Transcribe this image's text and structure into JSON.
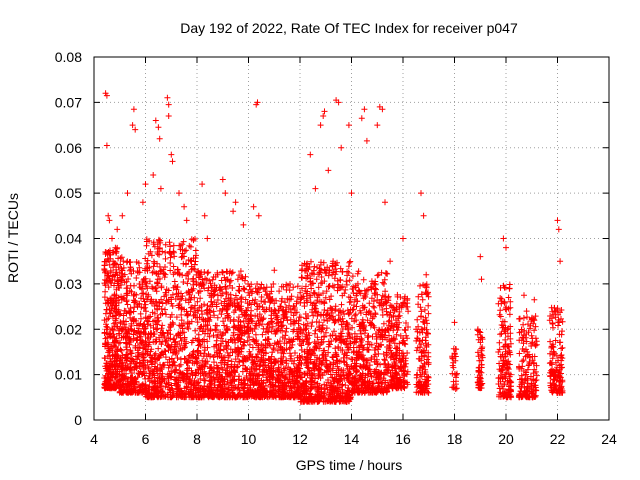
{
  "chart_data": {
    "type": "scatter",
    "title": "Day 192 of 2022, Rate Of TEC Index for receiver p047",
    "xlabel": "GPS time / hours",
    "ylabel": "ROTI / TECUs",
    "xlim": [
      4,
      24
    ],
    "ylim": [
      0,
      0.08
    ],
    "xticks": [
      "4",
      "6",
      "8",
      "10",
      "12",
      "14",
      "16",
      "18",
      "20",
      "22",
      "24"
    ],
    "yticks": [
      "0",
      "0.01",
      "0.02",
      "0.03",
      "0.04",
      "0.05",
      "0.06",
      "0.07",
      "0.08"
    ],
    "grid": true,
    "marker": "+",
    "color": "#ff0000",
    "series": [
      {
        "name": "ROTI",
        "points": [
          [
            4.45,
            0.072
          ],
          [
            4.5,
            0.0715
          ],
          [
            4.5,
            0.0605
          ],
          [
            4.55,
            0.045
          ],
          [
            4.6,
            0.044
          ],
          [
            4.7,
            0.04
          ],
          [
            4.9,
            0.042
          ],
          [
            5.1,
            0.045
          ],
          [
            5.3,
            0.05
          ],
          [
            5.55,
            0.0685
          ],
          [
            5.5,
            0.065
          ],
          [
            5.6,
            0.064
          ],
          [
            5.9,
            0.048
          ],
          [
            6.0,
            0.052
          ],
          [
            6.3,
            0.054
          ],
          [
            6.4,
            0.066
          ],
          [
            6.5,
            0.0645
          ],
          [
            6.55,
            0.062
          ],
          [
            6.6,
            0.051
          ],
          [
            6.85,
            0.071
          ],
          [
            6.9,
            0.0695
          ],
          [
            6.9,
            0.067
          ],
          [
            7.0,
            0.0585
          ],
          [
            7.05,
            0.057
          ],
          [
            7.3,
            0.05
          ],
          [
            7.5,
            0.047
          ],
          [
            7.6,
            0.044
          ],
          [
            8.2,
            0.052
          ],
          [
            8.3,
            0.045
          ],
          [
            8.4,
            0.04
          ],
          [
            9.0,
            0.053
          ],
          [
            9.1,
            0.05
          ],
          [
            9.4,
            0.046
          ],
          [
            9.5,
            0.048
          ],
          [
            9.8,
            0.043
          ],
          [
            10.2,
            0.047
          ],
          [
            10.3,
            0.0695
          ],
          [
            10.35,
            0.07
          ],
          [
            10.4,
            0.045
          ],
          [
            11.0,
            0.033
          ],
          [
            12.4,
            0.0585
          ],
          [
            12.6,
            0.051
          ],
          [
            12.8,
            0.065
          ],
          [
            12.9,
            0.067
          ],
          [
            12.95,
            0.068
          ],
          [
            13.1,
            0.055
          ],
          [
            13.4,
            0.0705
          ],
          [
            13.5,
            0.07
          ],
          [
            13.6,
            0.06
          ],
          [
            13.9,
            0.065
          ],
          [
            14.0,
            0.05
          ],
          [
            14.4,
            0.0665
          ],
          [
            14.5,
            0.0685
          ],
          [
            14.6,
            0.0615
          ],
          [
            15.0,
            0.065
          ],
          [
            15.1,
            0.069
          ],
          [
            15.2,
            0.0685
          ],
          [
            15.3,
            0.048
          ],
          [
            15.5,
            0.035
          ],
          [
            16.0,
            0.04
          ],
          [
            16.7,
            0.05
          ],
          [
            16.8,
            0.045
          ],
          [
            16.9,
            0.032
          ],
          [
            18.0,
            0.0215
          ],
          [
            18.05,
            0.014
          ],
          [
            19.0,
            0.036
          ],
          [
            19.05,
            0.031
          ],
          [
            19.9,
            0.04
          ],
          [
            20.0,
            0.038
          ],
          [
            20.1,
            0.027
          ],
          [
            20.7,
            0.0275
          ],
          [
            20.8,
            0.024
          ],
          [
            21.1,
            0.0265
          ],
          [
            21.7,
            0.022
          ],
          [
            22.0,
            0.044
          ],
          [
            22.05,
            0.042
          ],
          [
            22.1,
            0.035
          ],
          [
            21.9,
            0.024
          ]
        ],
        "dense_regions": [
          {
            "x_range": [
              4.4,
              4.9
            ],
            "y_range": [
              0.007,
              0.038
            ],
            "count": 300
          },
          {
            "x_range": [
              4.9,
              6.0
            ],
            "y_range": [
              0.006,
              0.036
            ],
            "count": 450
          },
          {
            "x_range": [
              6.0,
              8.0
            ],
            "y_range": [
              0.005,
              0.04
            ],
            "count": 700
          },
          {
            "x_range": [
              8.0,
              10.0
            ],
            "y_range": [
              0.005,
              0.033
            ],
            "count": 700
          },
          {
            "x_range": [
              10.0,
              12.0
            ],
            "y_range": [
              0.005,
              0.03
            ],
            "count": 700
          },
          {
            "x_range": [
              12.0,
              14.0
            ],
            "y_range": [
              0.004,
              0.035
            ],
            "count": 750
          },
          {
            "x_range": [
              14.0,
              15.4
            ],
            "y_range": [
              0.006,
              0.033
            ],
            "count": 450
          },
          {
            "x_range": [
              15.4,
              16.2
            ],
            "y_range": [
              0.007,
              0.028
            ],
            "count": 220
          },
          {
            "x_range": [
              16.5,
              17.0
            ],
            "y_range": [
              0.006,
              0.03
            ],
            "count": 140
          },
          {
            "x_range": [
              17.9,
              18.1
            ],
            "y_range": [
              0.006,
              0.016
            ],
            "count": 25
          },
          {
            "x_range": [
              18.9,
              19.1
            ],
            "y_range": [
              0.007,
              0.02
            ],
            "count": 60
          },
          {
            "x_range": [
              19.7,
              20.2
            ],
            "y_range": [
              0.005,
              0.03
            ],
            "count": 160
          },
          {
            "x_range": [
              20.5,
              21.2
            ],
            "y_range": [
              0.005,
              0.023
            ],
            "count": 170
          },
          {
            "x_range": [
              21.7,
              22.2
            ],
            "y_range": [
              0.006,
              0.025
            ],
            "count": 140
          }
        ]
      }
    ]
  }
}
